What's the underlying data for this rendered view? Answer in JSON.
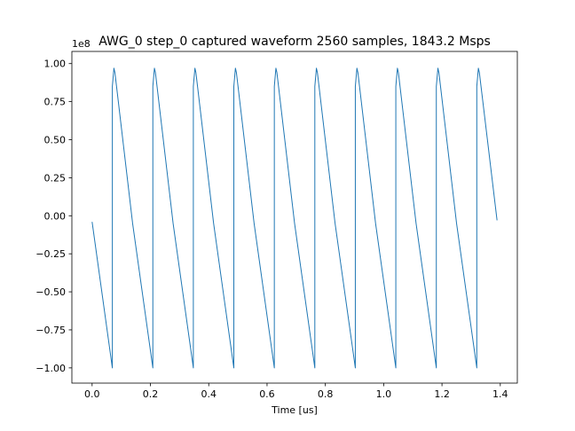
{
  "chart_data": {
    "type": "line",
    "title": "AWG_0 step_0 captured waveform 2560 samples, 1843.2 Msps",
    "xlabel": "Time [us]",
    "ylabel": "",
    "y_offset_label": "1e8",
    "xlim": [
      -0.0694,
      1.4584
    ],
    "ylim": [
      -1.1,
      1.08
    ],
    "y_scale_factor": 100000000,
    "x_ticks": [
      0.0,
      0.2,
      0.4,
      0.6,
      0.8,
      1.0,
      1.2,
      1.4
    ],
    "x_tick_labels": [
      "0.0",
      "0.2",
      "0.4",
      "0.6",
      "0.8",
      "1.0",
      "1.2",
      "1.4"
    ],
    "y_ticks": [
      -1.0,
      -0.75,
      -0.5,
      -0.25,
      0.0,
      0.25,
      0.5,
      0.75,
      1.0
    ],
    "y_tick_labels": [
      "−1.00",
      "−0.75",
      "−0.50",
      "−0.25",
      "0.00",
      "0.25",
      "0.50",
      "0.75",
      "1.00"
    ],
    "grid": false,
    "legend": "none",
    "series": [
      {
        "color": "#1f77b4",
        "x": [
          0.0,
          0.0694,
          0.0694,
          0.0748,
          0.0783,
          0.1389,
          0.2083,
          0.2083,
          0.2137,
          0.2172,
          0.2778,
          0.3472,
          0.3472,
          0.3526,
          0.3561,
          0.4167,
          0.4861,
          0.4861,
          0.4915,
          0.495,
          0.5556,
          0.625,
          0.625,
          0.6304,
          0.6339,
          0.6944,
          0.7639,
          0.7639,
          0.7693,
          0.7728,
          0.8333,
          0.9028,
          0.9028,
          0.9082,
          0.9117,
          0.9722,
          1.0417,
          1.0417,
          1.0471,
          1.0506,
          1.1111,
          1.1806,
          1.1806,
          1.186,
          1.1895,
          1.25,
          1.3194,
          1.3194,
          1.3248,
          1.3283,
          1.3889
        ],
        "y": [
          -0.04,
          -1.0,
          0.85,
          0.97,
          0.94,
          -0.05,
          -1.0,
          0.85,
          0.97,
          0.94,
          -0.05,
          -1.0,
          0.85,
          0.97,
          0.94,
          -0.05,
          -1.0,
          0.85,
          0.97,
          0.94,
          -0.05,
          -1.0,
          0.85,
          0.97,
          0.94,
          -0.05,
          -1.0,
          0.85,
          0.97,
          0.94,
          -0.05,
          -1.0,
          0.85,
          0.97,
          0.94,
          -0.05,
          -1.0,
          0.85,
          0.97,
          0.94,
          -0.05,
          -1.0,
          0.85,
          0.97,
          0.94,
          -0.05,
          -1.0,
          0.85,
          0.97,
          0.94,
          -0.03
        ]
      }
    ]
  }
}
